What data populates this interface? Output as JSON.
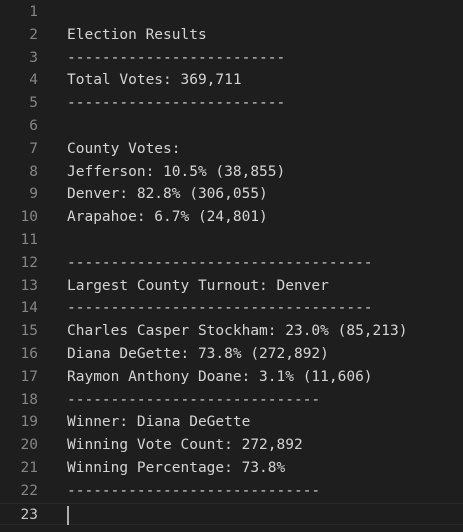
{
  "editor": {
    "lines": [
      {
        "number": "1",
        "text": ""
      },
      {
        "number": "2",
        "text": "Election Results"
      },
      {
        "number": "3",
        "text": "-------------------------"
      },
      {
        "number": "4",
        "text": "Total Votes: 369,711"
      },
      {
        "number": "5",
        "text": "-------------------------"
      },
      {
        "number": "6",
        "text": ""
      },
      {
        "number": "7",
        "text": "County Votes:"
      },
      {
        "number": "8",
        "text": "Jefferson: 10.5% (38,855)"
      },
      {
        "number": "9",
        "text": "Denver: 82.8% (306,055)"
      },
      {
        "number": "10",
        "text": "Arapahoe: 6.7% (24,801)"
      },
      {
        "number": "11",
        "text": ""
      },
      {
        "number": "12",
        "text": "-----------------------------------"
      },
      {
        "number": "13",
        "text": "Largest County Turnout: Denver"
      },
      {
        "number": "14",
        "text": "-----------------------------------"
      },
      {
        "number": "15",
        "text": "Charles Casper Stockham: 23.0% (85,213)"
      },
      {
        "number": "16",
        "text": "Diana DeGette: 73.8% (272,892)"
      },
      {
        "number": "17",
        "text": "Raymon Anthony Doane: 3.1% (11,606)"
      },
      {
        "number": "18",
        "text": "-----------------------------"
      },
      {
        "number": "19",
        "text": "Winner: Diana DeGette"
      },
      {
        "number": "20",
        "text": "Winning Vote Count: 272,892"
      },
      {
        "number": "21",
        "text": "Winning Percentage: 73.8%"
      },
      {
        "number": "22",
        "text": "-----------------------------"
      },
      {
        "number": "23",
        "text": ""
      }
    ],
    "current_line": "23"
  },
  "colors": {
    "background": "#1e1e1e",
    "text": "#d4d4d4",
    "line_number": "#858585",
    "line_number_active": "#c6c6c6",
    "cursor": "#aeafad"
  }
}
